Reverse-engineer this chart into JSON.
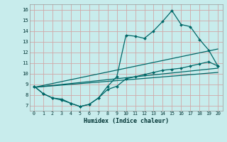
{
  "xlabel": "Humidex (Indice chaleur)",
  "bg_color": "#c8ecec",
  "grid_color": "#d0a8a8",
  "line_color": "#006868",
  "xlim": [
    -0.5,
    20.5
  ],
  "ylim": [
    6.5,
    16.5
  ],
  "xticks": [
    0,
    1,
    2,
    3,
    4,
    5,
    6,
    7,
    8,
    9,
    10,
    11,
    12,
    13,
    14,
    15,
    16,
    17,
    18,
    19,
    20
  ],
  "yticks": [
    7,
    8,
    9,
    10,
    11,
    12,
    13,
    14,
    15,
    16
  ],
  "line1_x": [
    0,
    1,
    2,
    3,
    4,
    5,
    6,
    7,
    8,
    9,
    10,
    11,
    12,
    13,
    14,
    15,
    16,
    17,
    18,
    19,
    20
  ],
  "line1_y": [
    8.8,
    8.1,
    7.7,
    7.6,
    7.2,
    6.9,
    7.1,
    7.7,
    8.8,
    9.7,
    13.6,
    13.5,
    13.3,
    14.0,
    14.9,
    15.9,
    14.6,
    14.4,
    13.2,
    12.2,
    10.7
  ],
  "line2_x": [
    0,
    1,
    2,
    3,
    4,
    5,
    6,
    7,
    8,
    9,
    10,
    11,
    12,
    13,
    14,
    15,
    16,
    17,
    18,
    19,
    20
  ],
  "line2_y": [
    8.8,
    8.1,
    7.7,
    7.5,
    7.2,
    6.9,
    7.1,
    7.7,
    8.5,
    8.8,
    9.5,
    9.7,
    9.9,
    10.1,
    10.3,
    10.4,
    10.5,
    10.7,
    10.9,
    11.1,
    10.7
  ],
  "line3_x": [
    0,
    20
  ],
  "line3_y": [
    8.7,
    12.3
  ],
  "line4_x": [
    0,
    20
  ],
  "line4_y": [
    8.7,
    10.5
  ],
  "line5_x": [
    0,
    20
  ],
  "line5_y": [
    8.7,
    10.1
  ]
}
